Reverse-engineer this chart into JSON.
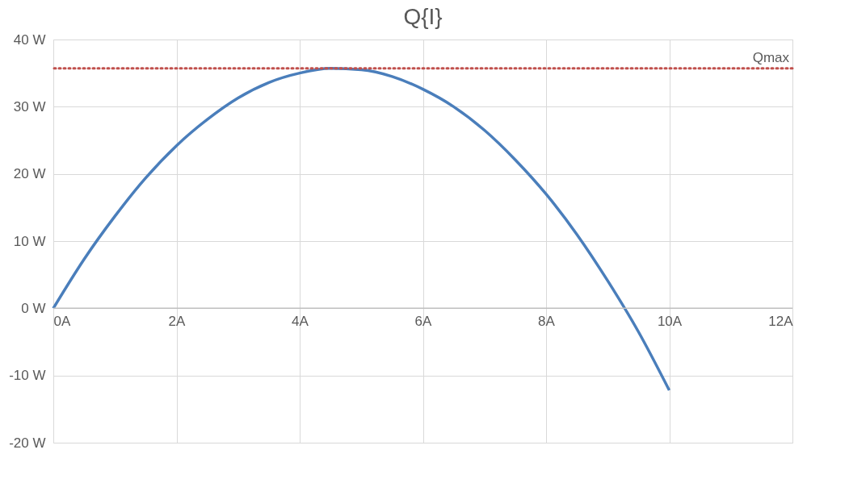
{
  "chart_data": {
    "type": "line",
    "title": "Q{I}",
    "x": [
      0,
      0.5,
      1,
      1.5,
      2,
      2.5,
      3,
      3.5,
      4,
      4.5,
      5,
      5.5,
      6,
      6.5,
      7,
      7.5,
      8,
      8.5,
      9,
      9.5,
      10
    ],
    "series": [
      {
        "color": "#4a7ebb",
        "values": [
          0,
          7.3,
          13.7,
          19.4,
          24.2,
          28.1,
          31.3,
          33.6,
          35.0,
          35.7,
          35.5,
          34.5,
          32.6,
          30.0,
          26.5,
          22.1,
          17.0,
          11.0,
          4.1,
          -3.5,
          -12.2
        ]
      }
    ],
    "xlim": [
      0,
      12
    ],
    "xticks": [
      {
        "value": 0,
        "label": "0A"
      },
      {
        "value": 2,
        "label": "2A"
      },
      {
        "value": 4,
        "label": "4A"
      },
      {
        "value": 6,
        "label": "6A"
      },
      {
        "value": 8,
        "label": "8A"
      },
      {
        "value": 10,
        "label": "10A"
      },
      {
        "value": 12,
        "label": "12A"
      }
    ],
    "ylim": [
      -20,
      40
    ],
    "yticks": [
      {
        "value": -20,
        "label": "-20 W"
      },
      {
        "value": -10,
        "label": "-10 W"
      },
      {
        "value": 0,
        "label": "0 W"
      },
      {
        "value": 10,
        "label": "10 W"
      },
      {
        "value": 20,
        "label": "20 W"
      },
      {
        "value": 30,
        "label": "30 W"
      },
      {
        "value": 40,
        "label": "40 W"
      }
    ],
    "ref_lines": [
      {
        "axis": "y",
        "value": 35.7,
        "label": "Qmax",
        "color": "#c0504d",
        "line_style": "dotted"
      }
    ],
    "grid": true
  }
}
